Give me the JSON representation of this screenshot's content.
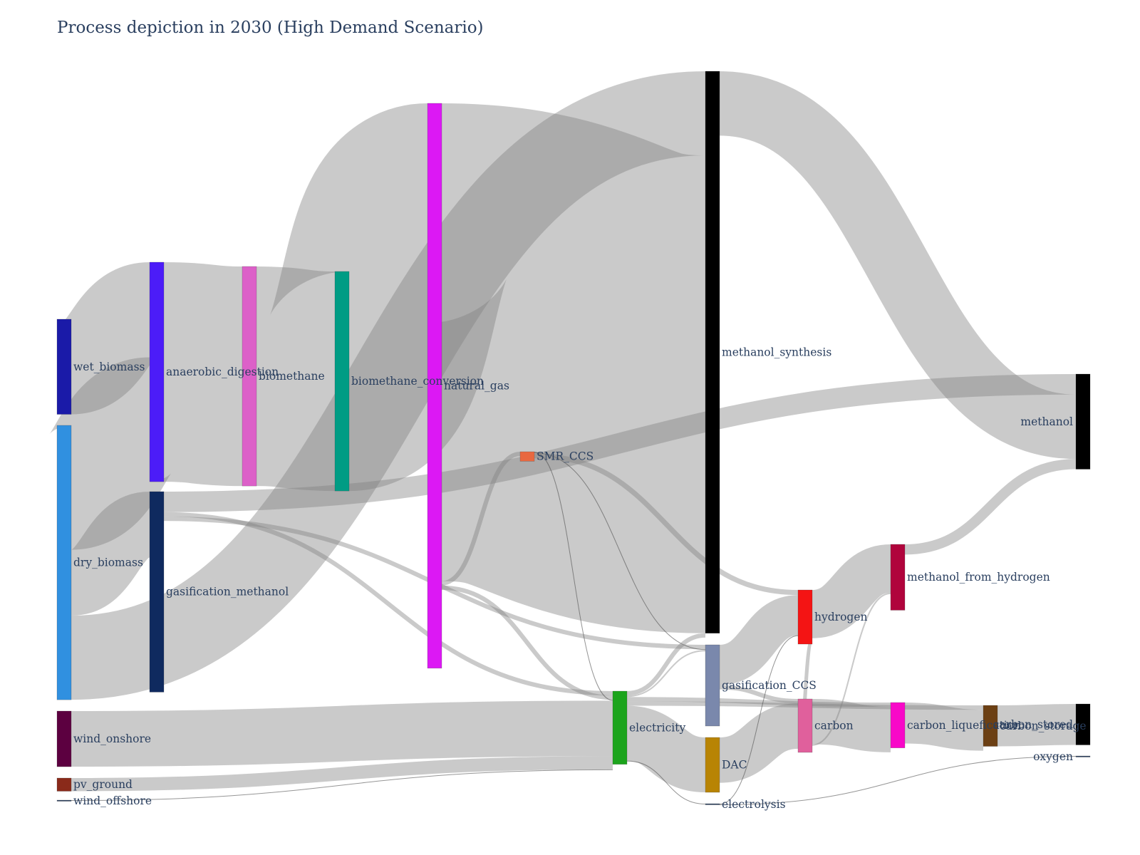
{
  "chart_data": {
    "type": "sankey",
    "title": "Process depiction in 2030 (High Demand Scenario)",
    "nodes": [
      {
        "id": "wet_biomass",
        "label": "wet_biomass",
        "color": "#1a1aa8",
        "value": 130
      },
      {
        "id": "dry_biomass",
        "label": "dry_biomass",
        "color": "#3090e0",
        "value": 375
      },
      {
        "id": "wind_onshore",
        "label": "wind_onshore",
        "color": "#5c0040",
        "value": 76
      },
      {
        "id": "pv_ground",
        "label": "pv_ground",
        "color": "#8a2a1a",
        "value": 18
      },
      {
        "id": "wind_offshore",
        "label": "wind_offshore",
        "color": "#2a3f5f",
        "value": 1
      },
      {
        "id": "anaerobic_digestion",
        "label": "anaerobic_digestion",
        "color": "#4c1cf8",
        "value": 300
      },
      {
        "id": "gasification_methanol",
        "label": "gasification_methanol",
        "color": "#0f2a5f",
        "value": 274
      },
      {
        "id": "biomethane",
        "label": "biomethane",
        "color": "#dc60c8",
        "value": 300
      },
      {
        "id": "biomethane_conversion",
        "label": "biomethane_conversion",
        "color": "#009c84",
        "value": 300
      },
      {
        "id": "natural_gas",
        "label": "natural_gas",
        "color": "#dc18f4",
        "value": 772
      },
      {
        "id": "SMR_CCS",
        "label": "SMR_CCS",
        "color": "#e86840",
        "value": 13
      },
      {
        "id": "electricity",
        "label": "electricity",
        "color": "#1ca41c",
        "value": 100
      },
      {
        "id": "methanol_synthesis",
        "label": "methanol_synthesis",
        "color": "#000000",
        "value": 768
      },
      {
        "id": "gasification_CCS",
        "label": "gasification_CCS",
        "color": "#7a88ac",
        "value": 111
      },
      {
        "id": "DAC",
        "label": "DAC",
        "color": "#b88404",
        "value": 75
      },
      {
        "id": "electrolysis",
        "label": "electrolysis",
        "color": "#2a3f5f",
        "value": 1
      },
      {
        "id": "hydrogen",
        "label": "hydrogen",
        "color": "#f41414",
        "value": 74
      },
      {
        "id": "carbon",
        "label": "carbon",
        "color": "#e0609c",
        "value": 73
      },
      {
        "id": "methanol_from_hydrogen",
        "label": "methanol_from_hydrogen",
        "color": "#b0043c",
        "value": 90
      },
      {
        "id": "carbon_liquefication",
        "label": "carbon_liquefication",
        "color": "#f808c8",
        "value": 62
      },
      {
        "id": "carbon_storage",
        "label": "carbon_storage",
        "color": "#6c4014",
        "value": 56
      },
      {
        "id": "methanol",
        "label": "methanol",
        "color": "#000000",
        "value": 130
      },
      {
        "id": "carbon_stored",
        "label": "carbon_stored",
        "color": "#000000",
        "value": 56
      },
      {
        "id": "oxygen",
        "label": "oxygen",
        "color": "#2a3f5f",
        "value": 1
      }
    ],
    "links": [
      {
        "source": "wet_biomass",
        "target": "anaerobic_digestion",
        "value": 130
      },
      {
        "source": "dry_biomass",
        "target": "anaerobic_digestion",
        "value": 170
      },
      {
        "source": "dry_biomass",
        "target": "gasification_methanol",
        "value": 90
      },
      {
        "source": "dry_biomass",
        "target": "methanol_synthesis",
        "value": 115
      },
      {
        "source": "anaerobic_digestion",
        "target": "biomethane",
        "value": 300
      },
      {
        "source": "biomethane",
        "target": "biomethane_conversion",
        "value": 300
      },
      {
        "source": "biomethane_conversion",
        "target": "natural_gas",
        "value": 300
      },
      {
        "source": "gasification_methanol",
        "target": "methanol",
        "value": 28
      },
      {
        "source": "gasification_methanol",
        "target": "electricity",
        "value": 6
      },
      {
        "source": "gasification_methanol",
        "target": "gasification_CCS",
        "value": 6
      },
      {
        "source": "natural_gas",
        "target": "methanol_synthesis",
        "value": 653
      },
      {
        "source": "natural_gas",
        "target": "SMR_CCS",
        "value": 6
      },
      {
        "source": "natural_gas",
        "target": "electricity",
        "value": 6
      },
      {
        "source": "SMR_CCS",
        "target": "electricity",
        "value": 1
      },
      {
        "source": "SMR_CCS",
        "target": "gasification_CCS",
        "value": 1
      },
      {
        "source": "SMR_CCS",
        "target": "hydrogen",
        "value": 7
      },
      {
        "source": "wind_onshore",
        "target": "electricity",
        "value": 76
      },
      {
        "source": "pv_ground",
        "target": "electricity",
        "value": 18
      },
      {
        "source": "wind_offshore",
        "target": "electricity",
        "value": 1
      },
      {
        "source": "electricity",
        "target": "methanol_synthesis",
        "value": 6
      },
      {
        "source": "electricity",
        "target": "gasification_CCS",
        "value": 2
      },
      {
        "source": "electricity",
        "target": "carbon_liquefication",
        "value": 6
      },
      {
        "source": "electricity",
        "target": "carbon_storage",
        "value": 6
      },
      {
        "source": "electricity",
        "target": "DAC",
        "value": 75
      },
      {
        "source": "electricity",
        "target": "electrolysis",
        "value": 1
      },
      {
        "source": "methanol_synthesis",
        "target": "methanol",
        "value": 88
      },
      {
        "source": "gasification_CCS",
        "target": "hydrogen",
        "value": 55
      },
      {
        "source": "gasification_CCS",
        "target": "carbon",
        "value": 6
      },
      {
        "source": "DAC",
        "target": "carbon",
        "value": 62
      },
      {
        "source": "electrolysis",
        "target": "hydrogen",
        "value": 1
      },
      {
        "source": "electrolysis",
        "target": "oxygen",
        "value": 1
      },
      {
        "source": "hydrogen",
        "target": "methanol_from_hydrogen",
        "value": 66
      },
      {
        "source": "hydrogen",
        "target": "carbon",
        "value": 5
      },
      {
        "source": "carbon",
        "target": "carbon_liquefication",
        "value": 62
      },
      {
        "source": "carbon",
        "target": "methanol_from_hydrogen",
        "value": 2
      },
      {
        "source": "carbon_liquefication",
        "target": "carbon_storage",
        "value": 56
      },
      {
        "source": "carbon_storage",
        "target": "carbon_stored",
        "value": 56
      },
      {
        "source": "methanol_from_hydrogen",
        "target": "methanol",
        "value": 14
      }
    ]
  }
}
